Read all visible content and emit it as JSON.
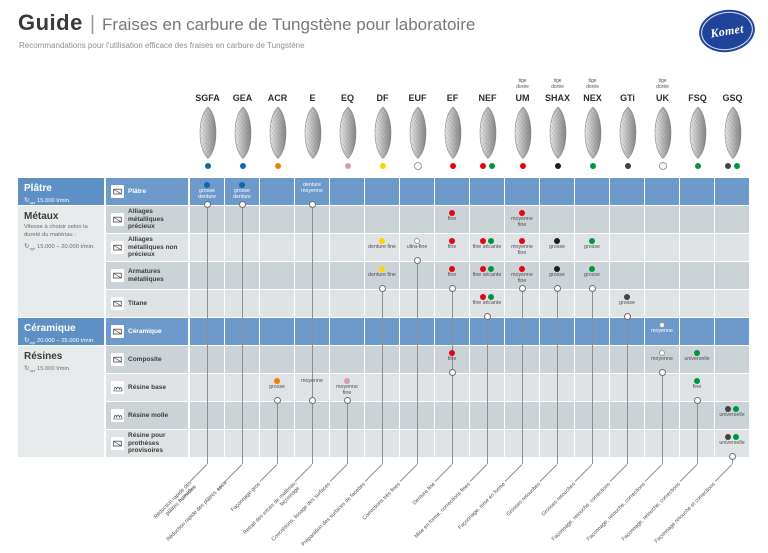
{
  "header": {
    "title_bold": "Guide",
    "title_separator": "|",
    "title": "Fraises en carbure de Tungstène pour laboratoire",
    "subtitle": "Recommandations pour l'utilisation efficace des fraises en carbure de Tungstène",
    "brand": "Komet"
  },
  "colors": {
    "blue_row": "#6d9aca",
    "blue_block": "#5e90c5",
    "row_dark": "#cbd3d7",
    "row_light": "#dfe3e5",
    "logo_blue": "#20449a",
    "dot": {
      "blue": "#1168a9",
      "orange": "#ee8100",
      "pink": "#d69cb5",
      "yellow": "#ffd400",
      "white": "#ffffff",
      "red": "#e30613",
      "green": "#009640",
      "black": "#1c1c1b",
      "gray": "#434342"
    }
  },
  "columns": [
    {
      "id": "SGFA",
      "label": "SGFA",
      "shank_note": "",
      "color_dots": [
        "blue"
      ],
      "usage": "Réduction rapide des plâtres",
      "usage_bold": "humides"
    },
    {
      "id": "GEA",
      "label": "GEA",
      "shank_note": "",
      "color_dots": [
        "blue"
      ],
      "usage": "Réduction rapide des plâtres",
      "usage_bold": "secs"
    },
    {
      "id": "ACR",
      "label": "ACR",
      "shank_note": "",
      "color_dots": [
        "orange"
      ],
      "usage": "Façonnage gros",
      "usage_bold": ""
    },
    {
      "id": "E",
      "label": "E",
      "shank_note": "",
      "color_dots": [],
      "usage": "Retrait des excès de matériau, façonnage",
      "usage_bold": ""
    },
    {
      "id": "EQ",
      "label": "EQ",
      "shank_note": "",
      "color_dots": [
        "pink"
      ],
      "usage": "Concrétions, lissage des surfaces",
      "usage_bold": ""
    },
    {
      "id": "DF",
      "label": "DF",
      "shank_note": "",
      "color_dots": [
        "yellow"
      ],
      "usage": "Préparation des surfaces de facettes",
      "usage_bold": ""
    },
    {
      "id": "EUF",
      "label": "EUF",
      "shank_note": "",
      "color_dots": [
        "white"
      ],
      "usage": "Corrections très fines",
      "usage_bold": ""
    },
    {
      "id": "EF",
      "label": "EF",
      "shank_note": "",
      "color_dots": [
        "red"
      ],
      "usage": "Denture fine",
      "usage_bold": ""
    },
    {
      "id": "NEF",
      "label": "NEF",
      "shank_note": "",
      "color_dots": [
        "red",
        "green"
      ],
      "usage": "Mise en forme, corrections fines",
      "usage_bold": ""
    },
    {
      "id": "UM",
      "label": "UM",
      "shank_note": "tige dorée",
      "color_dots": [
        "red"
      ],
      "usage": "Façonnage, mise en forme",
      "usage_bold": ""
    },
    {
      "id": "SHAX",
      "label": "SHAX",
      "shank_note": "tige dorée",
      "color_dots": [
        "black"
      ],
      "usage": "Grosses retouches",
      "usage_bold": ""
    },
    {
      "id": "NEX",
      "label": "NEX",
      "shank_note": "tige dorée",
      "color_dots": [
        "green"
      ],
      "usage": "Grosses retouches",
      "usage_bold": ""
    },
    {
      "id": "GTi",
      "label": "GTi",
      "shank_note": "",
      "color_dots": [
        "gray"
      ],
      "usage": "Façonnage, retouche, corrections",
      "usage_bold": ""
    },
    {
      "id": "UK",
      "label": "UK",
      "shank_note": "tige dorée",
      "color_dots": [
        "white"
      ],
      "usage": "Façonnage, retouche, corrections",
      "usage_bold": ""
    },
    {
      "id": "FSQ",
      "label": "FSQ",
      "shank_note": "",
      "color_dots": [
        "green"
      ],
      "usage": "Façonnage, retouche, corrections",
      "usage_bold": ""
    },
    {
      "id": "GSQ",
      "label": "GSQ",
      "shank_note": "",
      "color_dots": [
        "gray",
        "green"
      ],
      "usage": "Façonnage retouche et corrections",
      "usage_bold": ""
    }
  ],
  "groups": [
    {
      "id": "platre",
      "name": "Plâtre",
      "note": "",
      "speed_sub": "opt",
      "speed": "15.000 t/min.",
      "row_start": 0,
      "row_end": 0,
      "blue": true
    },
    {
      "id": "metaux",
      "name": "Métaux",
      "note": "Vitesse à choisir selon la dureté du matériau :",
      "speed_sub": "opt",
      "speed": "15.000 – 20.000 t/min.",
      "row_start": 1,
      "row_end": 4,
      "blue": false
    },
    {
      "id": "ceramique",
      "name": "Céramique",
      "note": "",
      "speed_sub": "opt",
      "speed": "20.000 – 25.000 t/min.",
      "row_start": 5,
      "row_end": 5,
      "blue": true
    },
    {
      "id": "resines",
      "name": "Résines",
      "note": "",
      "speed_sub": "opt",
      "speed": "15.000 t/min.",
      "row_start": 6,
      "row_end": 9,
      "blue": false
    }
  ],
  "rows": [
    {
      "id": "platre",
      "label": "Plâtre",
      "shade": "blue",
      "icon": "plaster-icon",
      "icon_variant": "block"
    },
    {
      "id": "precieux",
      "label": "Alliages métalliques précieux",
      "shade": "dark",
      "icon": "precious-alloy-icon",
      "icon_variant": "block"
    },
    {
      "id": "non_precieux",
      "label": "Alliages métalliques non précieux",
      "shade": "light",
      "icon": "non-precious-alloy-icon",
      "icon_variant": "block"
    },
    {
      "id": "armatures",
      "label": "Armatures métalliques",
      "shade": "dark",
      "icon": "metal-framework-icon",
      "icon_variant": "block"
    },
    {
      "id": "titane",
      "label": "Titane",
      "shade": "light",
      "icon": "titanium-icon",
      "icon_variant": "block"
    },
    {
      "id": "ceramique",
      "label": "Céramique",
      "shade": "blue",
      "icon": "ceramic-icon",
      "icon_variant": "block"
    },
    {
      "id": "composite",
      "label": "Composite",
      "shade": "dark",
      "icon": "composite-icon",
      "icon_variant": "block"
    },
    {
      "id": "resine_base",
      "label": "Résine base",
      "shade": "light",
      "icon": "denture-base-icon",
      "icon_variant": "teeth"
    },
    {
      "id": "resine_molle",
      "label": "Résine molle",
      "shade": "dark",
      "icon": "soft-resin-icon",
      "icon_variant": "teeth"
    },
    {
      "id": "protheses",
      "label": "Résine pour prothèses provisoires",
      "shade": "light",
      "icon": "temporary-prosthesis-icon",
      "icon_variant": "block"
    }
  ],
  "cells": [
    {
      "col": "SGFA",
      "row": "platre",
      "dots": [
        "blue"
      ],
      "label": "grosse denture",
      "connector": true
    },
    {
      "col": "GEA",
      "row": "platre",
      "dots": [
        "blue"
      ],
      "label": "grosse denture",
      "connector": true
    },
    {
      "col": "E",
      "row": "platre",
      "dots": [],
      "label": "denture moyenne",
      "connector": true
    },
    {
      "col": "EF",
      "row": "precieux",
      "dots": [
        "red"
      ],
      "label": "fine",
      "connector": false
    },
    {
      "col": "UM",
      "row": "precieux",
      "dots": [
        "red"
      ],
      "label": "moyenne fine",
      "connector": false
    },
    {
      "col": "DF",
      "row": "non_precieux",
      "dots": [
        "yellow"
      ],
      "label": "denture fine",
      "connector": false
    },
    {
      "col": "EUF",
      "row": "non_precieux",
      "dots": [
        "white"
      ],
      "label": "ultra-fine",
      "connector": true
    },
    {
      "col": "EF",
      "row": "non_precieux",
      "dots": [
        "red"
      ],
      "label": "fine",
      "connector": false
    },
    {
      "col": "NEF",
      "row": "non_precieux",
      "dots": [
        "red",
        "green"
      ],
      "label": "fine sécante",
      "connector": false
    },
    {
      "col": "UM",
      "row": "non_precieux",
      "dots": [
        "red"
      ],
      "label": "moyenne fine",
      "connector": false
    },
    {
      "col": "SHAX",
      "row": "non_precieux",
      "dots": [
        "black"
      ],
      "label": "grosse",
      "connector": false
    },
    {
      "col": "NEX",
      "row": "non_precieux",
      "dots": [
        "green"
      ],
      "label": "grosse",
      "connector": false
    },
    {
      "col": "DF",
      "row": "armatures",
      "dots": [
        "yellow"
      ],
      "label": "denture fine",
      "connector": true
    },
    {
      "col": "EF",
      "row": "armatures",
      "dots": [
        "red"
      ],
      "label": "fine",
      "connector": true
    },
    {
      "col": "NEF",
      "row": "armatures",
      "dots": [
        "red",
        "green"
      ],
      "label": "fine sécante",
      "connector": false
    },
    {
      "col": "UM",
      "row": "armatures",
      "dots": [
        "red"
      ],
      "label": "moyenne fine",
      "connector": true
    },
    {
      "col": "SHAX",
      "row": "armatures",
      "dots": [
        "black"
      ],
      "label": "grosse",
      "connector": true
    },
    {
      "col": "NEX",
      "row": "armatures",
      "dots": [
        "green"
      ],
      "label": "grosse",
      "connector": true
    },
    {
      "col": "NEF",
      "row": "titane",
      "dots": [
        "red",
        "green"
      ],
      "label": "fine sécante",
      "connector": true
    },
    {
      "col": "GTi",
      "row": "titane",
      "dots": [
        "gray"
      ],
      "label": "grosse",
      "connector": true
    },
    {
      "col": "UK",
      "row": "ceramique",
      "dots": [
        "white"
      ],
      "label": "moyenne",
      "connector": false
    },
    {
      "col": "EF",
      "row": "composite",
      "dots": [
        "red"
      ],
      "label": "fine",
      "connector": true
    },
    {
      "col": "UK",
      "row": "composite",
      "dots": [
        "white"
      ],
      "label": "moyenne",
      "connector": true
    },
    {
      "col": "FSQ",
      "row": "composite",
      "dots": [
        "green"
      ],
      "label": "universelle",
      "connector": false
    },
    {
      "col": "ACR",
      "row": "resine_base",
      "dots": [
        "orange"
      ],
      "label": "grosse",
      "connector": true
    },
    {
      "col": "E",
      "row": "resine_base",
      "dots": [],
      "label": "moyenne",
      "connector": true
    },
    {
      "col": "EQ",
      "row": "resine_base",
      "dots": [
        "pink"
      ],
      "label": "moyenne fine",
      "connector": true
    },
    {
      "col": "FSQ",
      "row": "resine_base",
      "dots": [
        "green"
      ],
      "label": "fine",
      "connector": true
    },
    {
      "col": "GSQ",
      "row": "resine_molle",
      "dots": [
        "gray",
        "green"
      ],
      "label": "universelle",
      "connector": false
    },
    {
      "col": "GSQ",
      "row": "protheses",
      "dots": [
        "gray",
        "green"
      ],
      "label": "universelle",
      "connector": true
    }
  ]
}
